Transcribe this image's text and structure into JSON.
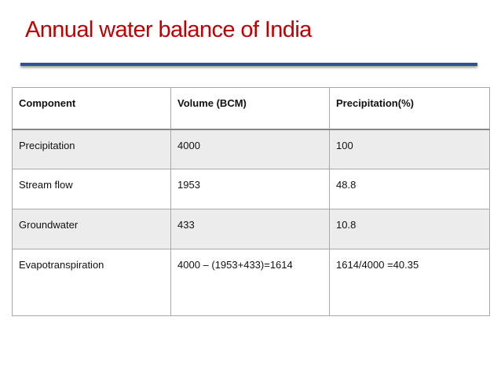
{
  "slide": {
    "title": "Annual water balance of India"
  },
  "table": {
    "headers": [
      "Component",
      "Volume (BCM)",
      "Precipitation(%)"
    ],
    "rows": [
      [
        "Precipitation",
        "4000",
        "100"
      ],
      [
        "Stream flow",
        "1953",
        "48.8"
      ],
      [
        "Groundwater",
        "433",
        "10.8"
      ],
      [
        "Evapotranspiration",
        "4000 – (1953+433)=1614",
        "1614/4000 =40.35"
      ]
    ],
    "colors": {
      "title": "#c00000",
      "rule": "#2f4f9a",
      "stripe": "#ececec"
    }
  }
}
